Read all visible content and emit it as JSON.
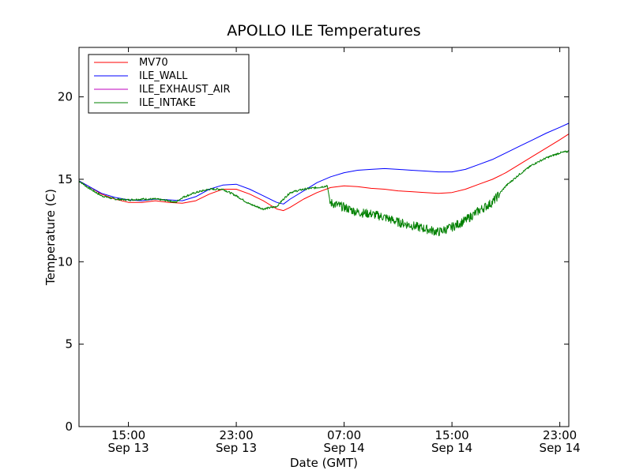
{
  "chart_data": {
    "type": "line",
    "title": "APOLLO ILE Temperatures",
    "xlabel": "Date (GMT)",
    "ylabel": "Temperature (C)",
    "x_unit": "hours",
    "xlim": [
      "Sep 13 11:20",
      "Sep 14 23:40"
    ],
    "ylim": [
      0,
      23
    ],
    "yticks": [
      0,
      5,
      10,
      15,
      20
    ],
    "xticks": [
      {
        "time": "Sep 13 15:00",
        "line1": "15:00",
        "line2": "Sep 13"
      },
      {
        "time": "Sep 13 23:00",
        "line1": "23:00",
        "line2": "Sep 13"
      },
      {
        "time": "Sep 14 07:00",
        "line1": "07:00",
        "line2": "Sep 14"
      },
      {
        "time": "Sep 14 15:00",
        "line1": "15:00",
        "line2": "Sep 14"
      },
      {
        "time": "Sep 14 23:00",
        "line1": "23:00",
        "line2": "Sep 14"
      }
    ],
    "grid": false,
    "legend_position": "top-left",
    "series": [
      {
        "name": "MV70",
        "color": "#ff0000",
        "x": [
          "Sep 13 11:20",
          "Sep 13 12:00",
          "Sep 13 13:00",
          "Sep 13 14:00",
          "Sep 13 15:00",
          "Sep 13 16:00",
          "Sep 13 17:00",
          "Sep 13 18:00",
          "Sep 13 19:00",
          "Sep 13 20:00",
          "Sep 13 21:00",
          "Sep 13 22:00",
          "Sep 13 23:00",
          "Sep 14 00:00",
          "Sep 14 01:00",
          "Sep 14 02:00",
          "Sep 14 02:30",
          "Sep 14 03:00",
          "Sep 14 04:00",
          "Sep 14 05:00",
          "Sep 14 06:00",
          "Sep 14 07:00",
          "Sep 14 08:00",
          "Sep 14 09:00",
          "Sep 14 10:00",
          "Sep 14 11:00",
          "Sep 14 12:00",
          "Sep 14 13:00",
          "Sep 14 14:00",
          "Sep 14 15:00",
          "Sep 14 16:00",
          "Sep 14 17:00",
          "Sep 14 18:00",
          "Sep 14 19:00",
          "Sep 14 20:00",
          "Sep 14 21:00",
          "Sep 14 22:00",
          "Sep 14 23:00",
          "Sep 14 23:40"
        ],
        "y": [
          14.9,
          14.6,
          14.1,
          13.8,
          13.6,
          13.6,
          13.7,
          13.6,
          13.55,
          13.7,
          14.1,
          14.4,
          14.4,
          14.1,
          13.7,
          13.2,
          13.1,
          13.3,
          13.8,
          14.2,
          14.5,
          14.6,
          14.55,
          14.45,
          14.4,
          14.3,
          14.25,
          14.2,
          14.15,
          14.2,
          14.4,
          14.7,
          15.0,
          15.4,
          15.9,
          16.4,
          16.9,
          17.4,
          17.75
        ]
      },
      {
        "name": "ILE_WALL",
        "color": "#0000ff",
        "x": [
          "Sep 13 11:20",
          "Sep 13 12:00",
          "Sep 13 13:00",
          "Sep 13 14:00",
          "Sep 13 15:00",
          "Sep 13 16:00",
          "Sep 13 17:00",
          "Sep 13 18:00",
          "Sep 13 19:00",
          "Sep 13 20:00",
          "Sep 13 21:00",
          "Sep 13 22:00",
          "Sep 13 23:00",
          "Sep 14 00:00",
          "Sep 14 01:00",
          "Sep 14 02:00",
          "Sep 14 02:30",
          "Sep 14 03:00",
          "Sep 14 04:00",
          "Sep 14 05:00",
          "Sep 14 06:00",
          "Sep 14 07:00",
          "Sep 14 08:00",
          "Sep 14 09:00",
          "Sep 14 10:00",
          "Sep 14 11:00",
          "Sep 14 12:00",
          "Sep 14 13:00",
          "Sep 14 14:00",
          "Sep 14 15:00",
          "Sep 14 16:00",
          "Sep 14 17:00",
          "Sep 14 18:00",
          "Sep 14 19:00",
          "Sep 14 20:00",
          "Sep 14 21:00",
          "Sep 14 22:00",
          "Sep 14 23:00",
          "Sep 14 23:40"
        ],
        "y": [
          14.9,
          14.6,
          14.15,
          13.9,
          13.75,
          13.7,
          13.8,
          13.75,
          13.7,
          13.95,
          14.4,
          14.65,
          14.7,
          14.4,
          14.0,
          13.6,
          13.5,
          13.8,
          14.3,
          14.8,
          15.15,
          15.4,
          15.55,
          15.6,
          15.65,
          15.6,
          15.55,
          15.5,
          15.45,
          15.45,
          15.6,
          15.9,
          16.2,
          16.6,
          17.0,
          17.4,
          17.8,
          18.15,
          18.4
        ]
      },
      {
        "name": "ILE_EXHAUST_AIR",
        "color": "#bf00bf",
        "x": [],
        "y": []
      },
      {
        "name": "ILE_INTAKE",
        "color": "#008000",
        "x": [
          "Sep 13 11:20",
          "Sep 13 12:00",
          "Sep 13 13:00",
          "Sep 13 14:00",
          "Sep 13 15:00",
          "Sep 13 16:00",
          "Sep 13 17:00",
          "Sep 13 18:00",
          "Sep 13 18:30",
          "Sep 13 19:00",
          "Sep 13 20:00",
          "Sep 13 21:00",
          "Sep 13 22:00",
          "Sep 13 23:00",
          "Sep 14 00:00",
          "Sep 14 01:00",
          "Sep 14 02:00",
          "Sep 14 02:30",
          "Sep 14 03:00",
          "Sep 14 04:00",
          "Sep 14 05:00",
          "Sep 14 05:45",
          "Sep 14 05:55",
          "Sep 14 07:00",
          "Sep 14 08:00",
          "Sep 14 09:00",
          "Sep 14 10:00",
          "Sep 14 11:00",
          "Sep 14 12:00",
          "Sep 14 13:00",
          "Sep 14 14:00",
          "Sep 14 15:00",
          "Sep 14 16:00",
          "Sep 14 17:00",
          "Sep 14 18:00",
          "Sep 14 19:00",
          "Sep 14 20:00",
          "Sep 14 21:00",
          "Sep 14 22:00",
          "Sep 14 23:00",
          "Sep 14 23:40"
        ],
        "y": [
          14.9,
          14.5,
          14.0,
          13.8,
          13.75,
          13.8,
          13.8,
          13.7,
          13.6,
          13.9,
          14.2,
          14.4,
          14.4,
          14.0,
          13.5,
          13.2,
          13.35,
          13.8,
          14.2,
          14.4,
          14.5,
          14.6,
          13.6,
          13.3,
          13.0,
          12.9,
          12.7,
          12.4,
          12.2,
          12.0,
          11.8,
          12.1,
          12.5,
          13.1,
          13.6,
          14.6,
          15.3,
          15.9,
          16.3,
          16.6,
          16.7
        ]
      }
    ]
  }
}
